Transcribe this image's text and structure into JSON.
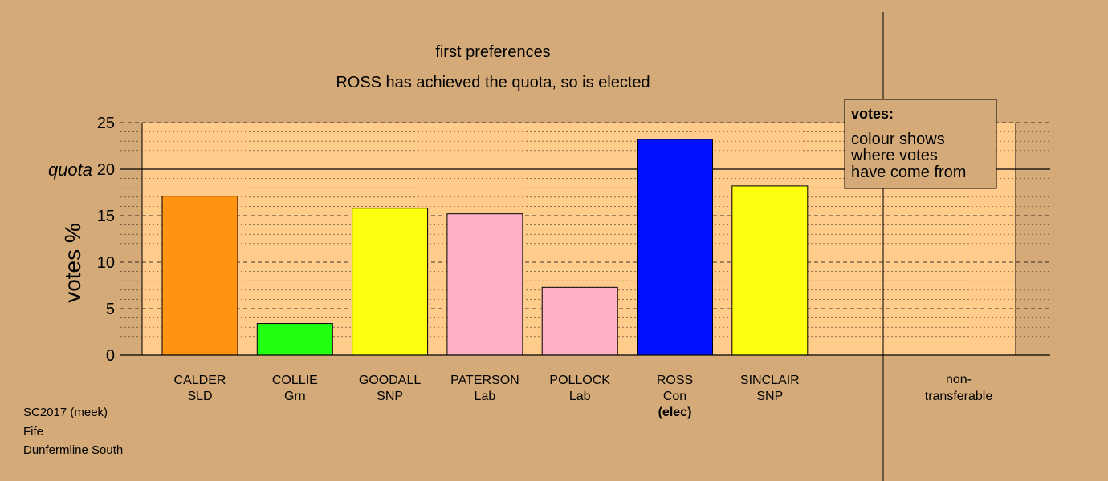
{
  "chart_data": {
    "type": "bar",
    "title_lines": [
      "first preferences",
      "ROSS has achieved the quota, so is elected"
    ],
    "ylabel": "votes %",
    "ylim": [
      0,
      25
    ],
    "yticks": [
      0,
      5,
      10,
      15,
      20,
      25
    ],
    "quota": 20,
    "quota_label": "quota",
    "categories": [
      {
        "name": "CALDER",
        "party": "SLD",
        "value": 17.1,
        "color": "#ff9410",
        "note": ""
      },
      {
        "name": "COLLIE",
        "party": "Grn",
        "value": 3.4,
        "color": "#22ff10",
        "note": ""
      },
      {
        "name": "GOODALL",
        "party": "SNP",
        "value": 15.8,
        "color": "#ffff10",
        "note": ""
      },
      {
        "name": "PATERSON",
        "party": "Lab",
        "value": 15.2,
        "color": "#ffb0c4",
        "note": ""
      },
      {
        "name": "POLLOCK",
        "party": "Lab",
        "value": 7.3,
        "color": "#ffb0c4",
        "note": ""
      },
      {
        "name": "ROSS",
        "party": "Con",
        "value": 23.2,
        "color": "#0010ff",
        "note": "(elec)"
      },
      {
        "name": "SINCLAIR",
        "party": "SNP",
        "value": 18.2,
        "color": "#ffff10",
        "note": ""
      }
    ],
    "nontransferable": {
      "label_line1": "non-",
      "label_line2": "transferable",
      "value": 0
    },
    "legend": {
      "title": "votes:",
      "lines": [
        "colour shows",
        "where votes",
        "have come from"
      ]
    },
    "grid": true,
    "legend_position": "top-right"
  },
  "footer": {
    "line1": "SC2017 (meek)",
    "line2": "Fife",
    "line3": "Dunfermline South"
  },
  "colors": {
    "background": "#d4aa78",
    "plot_area": "#ffcc8c",
    "axis": "#000000"
  }
}
